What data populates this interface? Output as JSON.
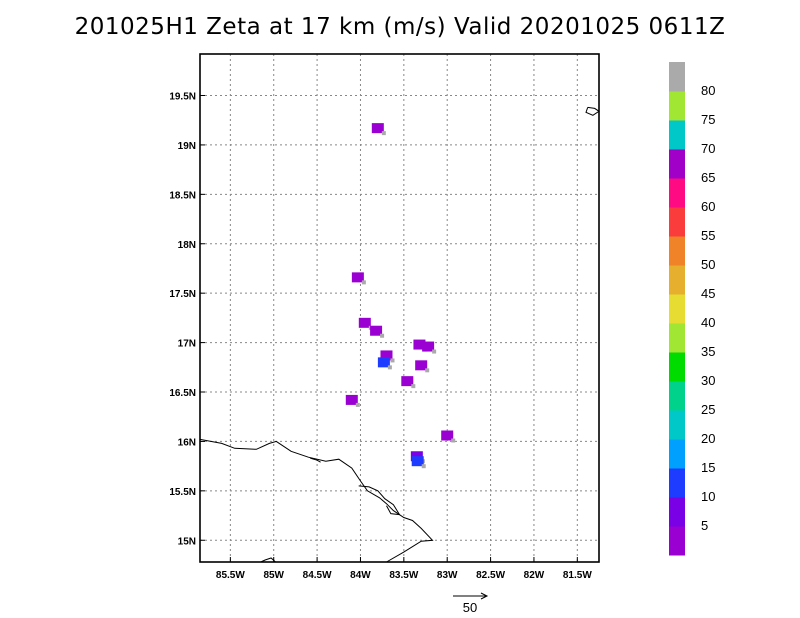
{
  "title": "201025H1 Zeta at 17 km (m/s) Valid 20201025 0611Z",
  "chart_data": {
    "type": "heatmap",
    "title": "201025H1 Zeta at 17 km (m/s) Valid 20201025 0611Z",
    "xlabel": "",
    "ylabel": "",
    "xlim": [
      -85.85,
      -81.25
    ],
    "ylim": [
      14.78,
      19.92
    ],
    "x_ticks": [
      {
        "value": -85.5,
        "label": "85.5W"
      },
      {
        "value": -85.0,
        "label": "85W"
      },
      {
        "value": -84.5,
        "label": "84.5W"
      },
      {
        "value": -84.0,
        "label": "84W"
      },
      {
        "value": -83.5,
        "label": "83.5W"
      },
      {
        "value": -83.0,
        "label": "83W"
      },
      {
        "value": -82.5,
        "label": "82.5W"
      },
      {
        "value": -82.0,
        "label": "82W"
      },
      {
        "value": -81.5,
        "label": "81.5W"
      }
    ],
    "y_ticks": [
      {
        "value": 15.0,
        "label": "15N"
      },
      {
        "value": 15.5,
        "label": "15.5N"
      },
      {
        "value": 16.0,
        "label": "16N"
      },
      {
        "value": 16.5,
        "label": "16.5N"
      },
      {
        "value": 17.0,
        "label": "17N"
      },
      {
        "value": 17.5,
        "label": "17.5N"
      },
      {
        "value": 18.0,
        "label": "18N"
      },
      {
        "value": 18.5,
        "label": "18.5N"
      },
      {
        "value": 19.0,
        "label": "19N"
      },
      {
        "value": 19.5,
        "label": "19.5N"
      }
    ],
    "grid": true,
    "colorbar": {
      "labels": [
        "5",
        "10",
        "15",
        "20",
        "25",
        "30",
        "35",
        "40",
        "45",
        "50",
        "55",
        "60",
        "65",
        "70",
        "75",
        "80"
      ],
      "colors": [
        "#9a00d2",
        "#7a00e6",
        "#1e3cff",
        "#00a0ff",
        "#00c8c8",
        "#00d28c",
        "#00dc00",
        "#a0e632",
        "#e6dc32",
        "#e6af2d",
        "#f08228",
        "#fa3c3c",
        "#ff0a82",
        "#a000c8",
        "#00c8c8",
        "#a0e632",
        "#aaaaaa"
      ]
    },
    "vorticity_cells": [
      {
        "lon": -83.8,
        "lat": 19.17,
        "value": 5
      },
      {
        "lon": -84.03,
        "lat": 17.66,
        "value": 5
      },
      {
        "lon": -83.95,
        "lat": 17.2,
        "value": 5
      },
      {
        "lon": -83.82,
        "lat": 17.12,
        "value": 5
      },
      {
        "lon": -83.7,
        "lat": 16.87,
        "value": 5
      },
      {
        "lon": -83.73,
        "lat": 16.8,
        "value": 15
      },
      {
        "lon": -83.32,
        "lat": 16.98,
        "value": 5
      },
      {
        "lon": -83.22,
        "lat": 16.96,
        "value": 5
      },
      {
        "lon": -83.3,
        "lat": 16.77,
        "value": 5
      },
      {
        "lon": -83.46,
        "lat": 16.61,
        "value": 5
      },
      {
        "lon": -84.1,
        "lat": 16.42,
        "value": 5
      },
      {
        "lon": -83.0,
        "lat": 16.06,
        "value": 5
      },
      {
        "lon": -83.35,
        "lat": 15.85,
        "value": 10
      },
      {
        "lon": -83.34,
        "lat": 15.8,
        "value": 15
      }
    ],
    "coastlines": [
      [
        [
          -85.85,
          16.02
        ],
        [
          -85.6,
          15.98
        ],
        [
          -85.45,
          15.93
        ],
        [
          -85.2,
          15.92
        ],
        [
          -85.05,
          15.98
        ],
        [
          -84.97,
          16.0
        ],
        [
          -84.8,
          15.9
        ],
        [
          -84.6,
          15.84
        ],
        [
          -84.4,
          15.8
        ],
        [
          -84.25,
          15.82
        ],
        [
          -84.1,
          15.73
        ],
        [
          -84.0,
          15.6
        ],
        [
          -83.92,
          15.5
        ],
        [
          -83.78,
          15.43
        ],
        [
          -83.7,
          15.37
        ],
        [
          -83.62,
          15.3
        ],
        [
          -83.5,
          15.23
        ],
        [
          -83.4,
          15.2
        ],
        [
          -83.3,
          15.12
        ],
        [
          -83.17,
          15.0
        ],
        [
          -83.3,
          14.99
        ],
        [
          -83.5,
          14.88
        ],
        [
          -83.7,
          14.78
        ]
      ],
      [
        [
          -85.15,
          14.78
        ],
        [
          -85.1,
          14.8
        ],
        [
          -85.03,
          14.82
        ],
        [
          -84.98,
          14.78
        ]
      ],
      [
        [
          -84.02,
          15.55
        ],
        [
          -83.9,
          15.54
        ],
        [
          -83.8,
          15.5
        ],
        [
          -83.72,
          15.42
        ],
        [
          -83.62,
          15.36
        ],
        [
          -83.55,
          15.26
        ],
        [
          -83.65,
          15.27
        ],
        [
          -83.7,
          15.35
        ]
      ],
      [
        [
          -84.58,
          15.83
        ],
        [
          -84.5,
          15.81
        ],
        [
          -84.46,
          15.79
        ]
      ],
      [
        [
          -81.38,
          19.38
        ],
        [
          -81.3,
          19.37
        ],
        [
          -81.25,
          19.34
        ],
        [
          -81.32,
          19.3
        ],
        [
          -81.4,
          19.33
        ],
        [
          -81.38,
          19.38
        ]
      ]
    ],
    "reference_vector": {
      "label": "50"
    }
  }
}
